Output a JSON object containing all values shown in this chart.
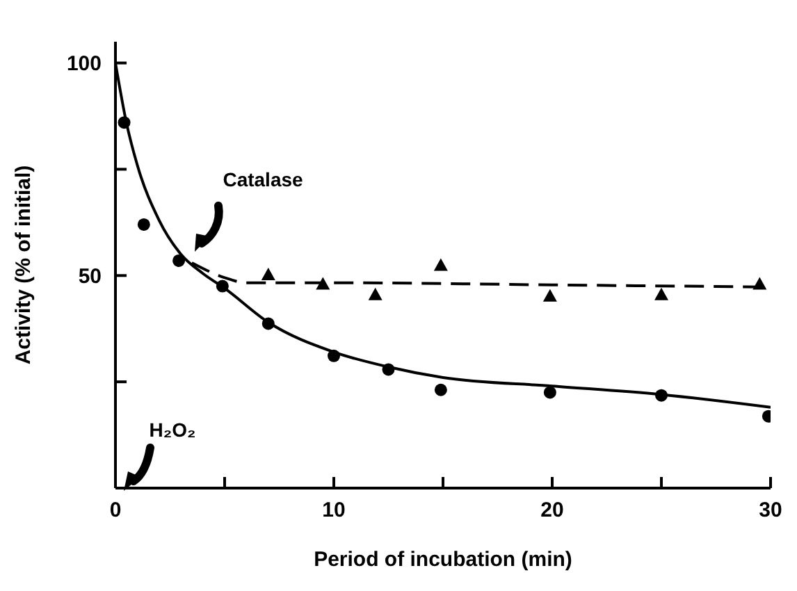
{
  "chart_data": {
    "type": "scatter",
    "xlabel": "Period of incubation (min)",
    "ylabel": "Activity (% of initial)",
    "xlim": [
      0,
      30
    ],
    "xticks": [
      0,
      {
        "value": 5,
        "label": null
      },
      10,
      {
        "value": 15,
        "label": null
      },
      20,
      {
        "value": 25,
        "label": null
      },
      30
    ],
    "ylim": [
      0,
      105
    ],
    "yticks": [
      {
        "value": 25,
        "label": null
      },
      50,
      {
        "value": 75,
        "label": null
      },
      100
    ],
    "grid": false,
    "legend": false,
    "annotations": [
      "Catalase",
      "H₂O₂"
    ],
    "series": [
      {
        "marker": "circle",
        "color": "#000000",
        "x": [
          0.4,
          1.3,
          2.9,
          4.9,
          7,
          10,
          12.5,
          14.9,
          19.9,
          25,
          29.9
        ],
        "values": [
          86,
          62,
          53.5,
          47.5,
          38.7,
          31.1,
          27.9,
          23.1,
          22.5,
          21.8,
          16.9
        ]
      },
      {
        "marker": "triangle",
        "color": "#000000",
        "x": [
          7,
          9.5,
          11.9,
          14.9,
          19.9,
          25,
          29.5
        ],
        "values": [
          50.2,
          48,
          45.5,
          52.4,
          45.2,
          45.5,
          48
        ]
      },
      {
        "type": "line",
        "marker": "none",
        "line_style": "solid",
        "color": "#000000",
        "x": [
          0,
          0.5,
          1,
          2,
          3,
          4,
          5,
          7,
          10,
          12.5,
          15,
          20,
          25,
          30
        ],
        "values": [
          100,
          86,
          76,
          63,
          55,
          50.5,
          47,
          39,
          32,
          28.5,
          26,
          24,
          22,
          19
        ]
      },
      {
        "type": "line",
        "marker": "none",
        "line_style": "dashed",
        "color": "#000000",
        "x": [
          3.5,
          5,
          6,
          10,
          20,
          30
        ],
        "values": [
          53,
          49.5,
          48.3,
          48.3,
          47.8,
          47.3
        ]
      }
    ]
  }
}
